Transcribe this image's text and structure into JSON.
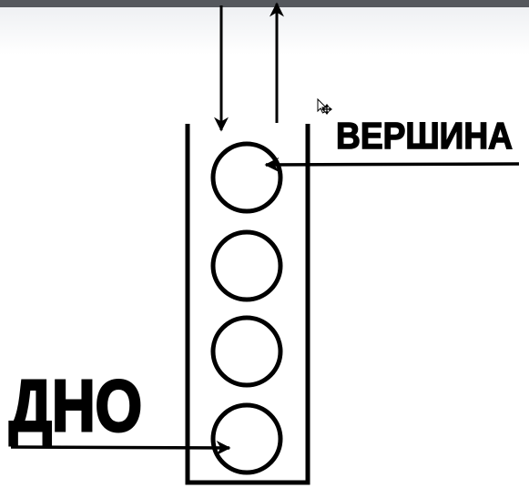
{
  "diagram": {
    "top_label": "ВЕРШИНА",
    "bottom_label": "ДНО",
    "element_count": 4,
    "colors": {
      "stroke": "#000000",
      "background": "#ffffff",
      "window_bar": "#55585d"
    },
    "icons": [
      "move-cursor-icon"
    ]
  }
}
